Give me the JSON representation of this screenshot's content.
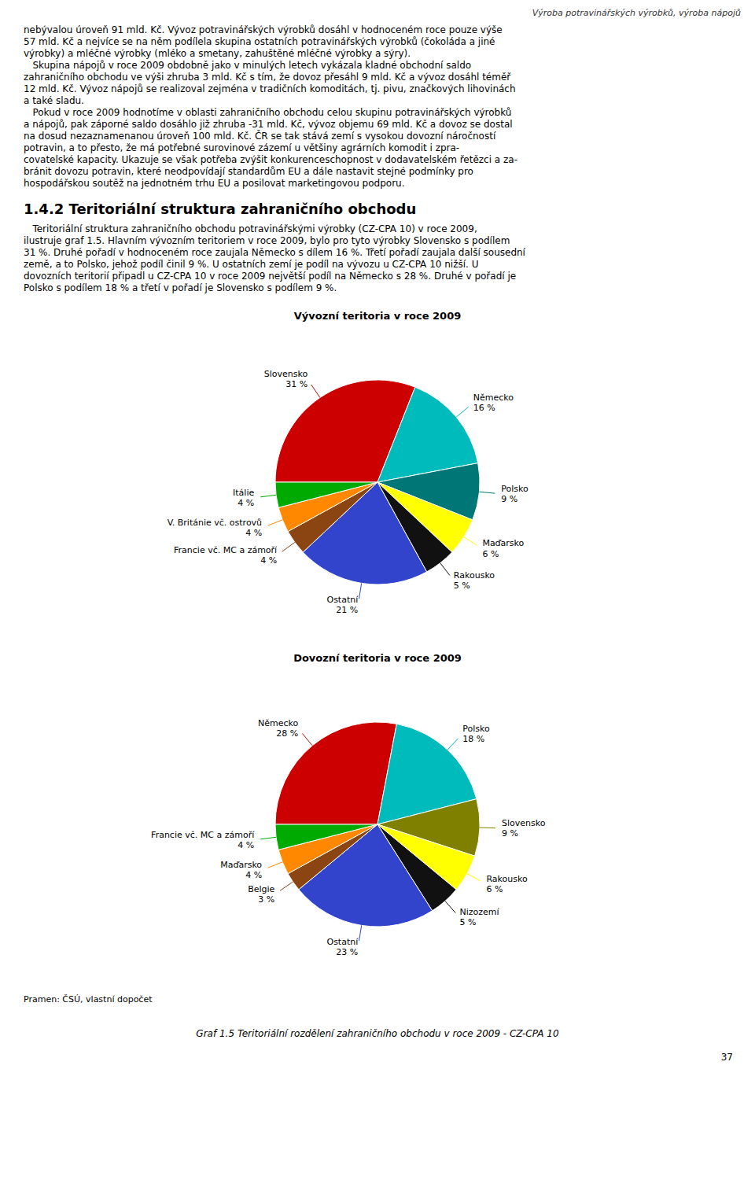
{
  "page_title": "Výroba potravinářských výrobků, výroba nápojů",
  "page_number": "37",
  "body_text": [
    "nebývalou úroveň 91 mld. Kč. Vývoz potravinářských výrobků dosáhl v hodnoceném roce pouze výše",
    "57 mld. Kč a nejvíce se na něm podílela skupina ostatních potravinářských výrobků (čokoláda a jiné",
    "výrobky) a mléčné výrobky (mléko a smetany, zahuštěné mléčné výrobky a sýry).",
    "   Skupina nápojů v roce 2009 obdobně jako v minulých letech vykázala kladné obchodní saldo",
    "zahraničního obchodu ve výši zhruba 3 mld. Kč s tím, že dovoz přesáhl 9 mld. Kč a vývoz dosáhl téměř",
    "12 mld. Kč. Vývoz nápojů se realizoval zejména v tradičních komoditách, tj. pivu, značkových lihovinách",
    "a také sladu.",
    "   Pokud v roce 2009 hodnotíme v oblasti zahraničního obchodu celou skupinu potravinářských výrobků",
    "a nápojů, pak záporné saldo dosáhlo již zhruba -31 mld. Kč, vývoz objemu 69 mld. Kč a dovoz se dostal",
    "na dosud nezaznamenanou úroveň 100 mld. Kč. ČR se tak stává zemí s vysokou dovozní náročností",
    "potravin, a to přesto, že má potřebné surovinové zázemí u většiny agrárních komodit i zpra-",
    "covatelské kapacity. Ukazuje se však potřeba zvýšit konkurenceschopnost v dodavatelském řetězci a za-",
    "bránit dovozu potravin, které neodpovídají standardům EU a dále nastavit stejné podmínky pro",
    "hospodářskou soutěž na jednotném trhu EU a posilovat marketingovou podporu."
  ],
  "section_title": "1.4.2 Teritoriální struktura zahraničního obchodu",
  "section_text": [
    "   Teritoriální struktura zahraničního obchodu potravinářskými výrobky (CZ-CPA 10) v roce 2009,",
    "ilustruje graf 1.5. Hlavním vývozním teritoriem v roce 2009, bylo pro tyto výrobky Slovensko s podílem",
    "31 %. Druhé pořadí v hodnoceném roce zaujala Německo s dílem 16 %. Třetí pořadí zaujala další sousední",
    "země, a to Polsko, jehož podíl činil 9 %. U ostatních zemí je podíl na vývozu u CZ-CPA 10 nižší. U",
    "dovozních teritorií připadl u CZ-CPA 10 v roce 2009 největší podíl na Německo s 28 %. Druhé v pořadí je",
    "Polsko s podílem 18 % a třetí v pořadí je Slovensko s podílem 9 %."
  ],
  "source": "Pramen: ČSÚ, vlastní dopočet",
  "caption": "Graf 1.5 Teritoriální rozdělení zahraničního obchodu v roce 2009 - CZ-CPA 10",
  "chart_data": [
    {
      "type": "pie",
      "title": "Vývozní teritoria v roce 2009",
      "categories": [
        "Slovensko",
        "Německo",
        "Polsko",
        "Maďarsko",
        "Rakousko",
        "Ostatní",
        "Francie vč. MC a zámoří",
        "V. Británie vč. ostrovů",
        "Itálie"
      ],
      "values": [
        31,
        16,
        9,
        6,
        5,
        21,
        4,
        4,
        4
      ],
      "value_labels": [
        "31 %",
        "16 %",
        "9 %",
        "6 %",
        "5 %",
        "21 %",
        "4 %",
        "4 %",
        "4 %"
      ],
      "colors": [
        "#cc0000",
        "#00bbbb",
        "#007777",
        "#ffff00",
        "#111111",
        "#3344cc",
        "#8B4513",
        "#ff8800",
        "#00aa00"
      ],
      "data_labels": true
    },
    {
      "type": "pie",
      "title": "Dovozní teritoria v roce 2009",
      "categories": [
        "Německo",
        "Polsko",
        "Slovensko",
        "Rakousko",
        "Nizozemí",
        "Ostatní",
        "Belgie",
        "Maďarsko",
        "Francie vč. MC a zámoří"
      ],
      "values": [
        28,
        18,
        9,
        6,
        5,
        23,
        3,
        4,
        4
      ],
      "value_labels": [
        "28 %",
        "18 %",
        "9 %",
        "6 %",
        "5 %",
        "23 %",
        "3 %",
        "4 %",
        "4 %"
      ],
      "colors": [
        "#cc0000",
        "#00bbbb",
        "#808000",
        "#ffff00",
        "#111111",
        "#3344cc",
        "#8B4513",
        "#ff8800",
        "#00aa00"
      ],
      "data_labels": true
    }
  ]
}
